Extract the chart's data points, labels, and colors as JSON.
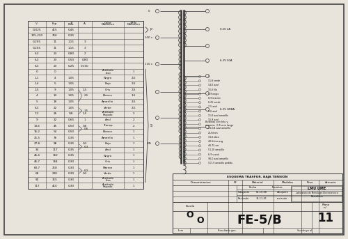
{
  "bg_color": "#e8e4dc",
  "title": "FE-5/B",
  "sheet_num": "11",
  "table_rows": [
    [
      "D-025",
      "415",
      "0,45",
      "",
      "",
      ""
    ],
    [
      "125-220",
      "316",
      "0,35",
      "",
      "",
      ""
    ],
    [
      "0-205",
      "11",
      "1,15",
      "3",
      "",
      ""
    ],
    [
      "0-205",
      "11",
      "1,15",
      "3",
      "",
      ""
    ],
    [
      "6,3",
      "23",
      "0,80",
      "2",
      "",
      ""
    ],
    [
      "6,3",
      "23",
      "0,50",
      "0,80",
      "",
      ""
    ],
    [
      "6,3",
      "23",
      "0,25",
      "0.150",
      "",
      ""
    ],
    [
      "0",
      "0",
      "-",
      "",
      "Aceitado\nLiso",
      "1"
    ],
    [
      "1,1",
      "4",
      "1,05",
      "",
      "Negro",
      "2,5"
    ],
    [
      "1,4",
      "5",
      "1,05",
      "",
      "Rojo",
      "2,5"
    ],
    [
      "2,5",
      "9",
      "1,05",
      "2,5",
      "Gris",
      "2,5"
    ],
    [
      "4",
      "14",
      "1,05",
      "",
      "Blanco",
      "1,5"
    ],
    [
      "5",
      "18",
      "1,05",
      "",
      "Amarillo",
      "2,5"
    ],
    [
      "6,3",
      "22",
      "1,05",
      "",
      "Verde",
      "2,5"
    ],
    [
      "7,2",
      "26",
      "0,8",
      "1,5",
      "Aceitado\nRayado",
      "2"
    ],
    [
      "9",
      "32",
      "0,65",
      "1",
      "Azul",
      "2"
    ],
    [
      "13,6",
      "45",
      "0,50",
      "0,6",
      "Transp.",
      "2"
    ],
    [
      "16,2",
      "54",
      "0,50",
      "",
      "Blanco",
      "1"
    ],
    [
      "21,5",
      "76",
      "0,35",
      "",
      "Amarillo",
      "1"
    ],
    [
      "27,8",
      "98",
      "0,35",
      "0,3",
      "Rojo",
      "1"
    ],
    [
      "34",
      "117",
      "0,35",
      "",
      "Azul",
      "1"
    ],
    [
      "46,4",
      "162",
      "0,35",
      "",
      "Negro",
      "1"
    ],
    [
      "46,7",
      "164",
      "0,30",
      "",
      "Gris",
      "1"
    ],
    [
      "60,7",
      "218",
      "0,30",
      "",
      "Marron",
      "1"
    ],
    [
      "68",
      "238",
      "0,30",
      "0,2",
      "Verde",
      "1"
    ],
    [
      "90",
      "315",
      "0,30",
      "",
      "Aceitado\nLiso",
      "1"
    ],
    [
      "117",
      "410",
      "0,30",
      "",
      "Aceitado\nRayado",
      "1"
    ]
  ]
}
